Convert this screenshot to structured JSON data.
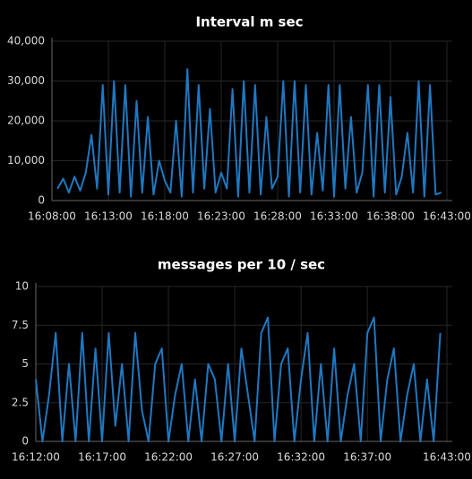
{
  "chart_data": [
    {
      "type": "line",
      "title": "Interval m sec",
      "x": [
        "16:08:30",
        "16:09:00",
        "16:09:30",
        "16:10:00",
        "16:10:30",
        "16:11:00",
        "16:11:30",
        "16:12:00",
        "16:12:30",
        "16:13:00",
        "16:13:30",
        "16:14:00",
        "16:14:30",
        "16:15:00",
        "16:15:30",
        "16:16:00",
        "16:16:30",
        "16:17:00",
        "16:17:30",
        "16:18:00",
        "16:18:30",
        "16:19:00",
        "16:19:30",
        "16:20:00",
        "16:20:30",
        "16:21:00",
        "16:21:30",
        "16:22:00",
        "16:22:30",
        "16:23:00",
        "16:23:30",
        "16:24:00",
        "16:24:30",
        "16:25:00",
        "16:25:30",
        "16:26:00",
        "16:26:30",
        "16:27:00",
        "16:27:30",
        "16:28:00",
        "16:28:30",
        "16:29:00",
        "16:29:30",
        "16:30:00",
        "16:30:30",
        "16:31:00",
        "16:31:30",
        "16:32:00",
        "16:32:30",
        "16:33:00",
        "16:33:30",
        "16:34:00",
        "16:34:30",
        "16:35:00",
        "16:35:30",
        "16:36:00",
        "16:36:30",
        "16:37:00",
        "16:37:30",
        "16:38:00",
        "16:38:30",
        "16:39:00",
        "16:39:30",
        "16:40:00",
        "16:40:30",
        "16:41:00",
        "16:41:30",
        "16:42:00",
        "16:42:30"
      ],
      "series": [
        {
          "color": "#1f78c1",
          "values": [
            3000,
            5500,
            2000,
            6000,
            2500,
            7000,
            16500,
            3000,
            29000,
            1500,
            30000,
            2000,
            29000,
            1000,
            25000,
            2000,
            21000,
            1500,
            10000,
            5000,
            2000,
            20000,
            1000,
            33000,
            2000,
            29000,
            3000,
            23000,
            2000,
            7000,
            3000,
            28000,
            1000,
            30000,
            2000,
            29000,
            1500,
            21000,
            3000,
            6000,
            30000,
            1000,
            30000,
            2000,
            29000,
            1500,
            17000,
            2500,
            29000,
            1000,
            29000,
            3000,
            21000,
            2000,
            7000,
            29000,
            1000,
            29000,
            2000,
            26000,
            1500,
            6000,
            17000,
            2000,
            30000,
            1000,
            29000,
            1500,
            2000
          ]
        }
      ],
      "xlim": [
        "16:08:00",
        "16:43:00"
      ],
      "xticks": [
        "16:08:00",
        "16:13:00",
        "16:18:00",
        "16:23:00",
        "16:28:00",
        "16:33:00",
        "16:38:00",
        "16:43:00"
      ],
      "ylim": [
        0,
        40000
      ],
      "yticks": [
        0,
        {
          "value": 10000,
          "label": "10,000"
        },
        {
          "value": 20000,
          "label": "20,000"
        },
        {
          "value": 30000,
          "label": "30,000"
        },
        {
          "value": 40000,
          "label": "40,000"
        }
      ],
      "grid": true
    },
    {
      "type": "line",
      "title": "messages per 10 / sec",
      "x": [
        "16:12:00",
        "16:12:30",
        "16:13:00",
        "16:13:30",
        "16:14:00",
        "16:14:30",
        "16:15:00",
        "16:15:30",
        "16:16:00",
        "16:16:30",
        "16:17:00",
        "16:17:30",
        "16:18:00",
        "16:18:30",
        "16:19:00",
        "16:19:30",
        "16:20:00",
        "16:20:30",
        "16:21:00",
        "16:21:30",
        "16:22:00",
        "16:22:30",
        "16:23:00",
        "16:23:30",
        "16:24:00",
        "16:24:30",
        "16:25:00",
        "16:25:30",
        "16:26:00",
        "16:26:30",
        "16:27:00",
        "16:27:30",
        "16:28:00",
        "16:28:30",
        "16:29:00",
        "16:29:30",
        "16:30:00",
        "16:30:30",
        "16:31:00",
        "16:31:30",
        "16:32:00",
        "16:32:30",
        "16:33:00",
        "16:33:30",
        "16:34:00",
        "16:34:30",
        "16:35:00",
        "16:35:30",
        "16:36:00",
        "16:36:30",
        "16:37:00",
        "16:37:30",
        "16:38:00",
        "16:38:30",
        "16:39:00",
        "16:39:30",
        "16:40:00",
        "16:40:30",
        "16:41:00",
        "16:41:30",
        "16:42:00",
        "16:42:30"
      ],
      "series": [
        {
          "color": "#1f78c1",
          "values": [
            4,
            0,
            3,
            7,
            0,
            5,
            0,
            7,
            0,
            6,
            0,
            7,
            1,
            5,
            0,
            7,
            2,
            0,
            5,
            6,
            0,
            3,
            5,
            0,
            4,
            0,
            5,
            4,
            0,
            5,
            0,
            6,
            3,
            0,
            7,
            8,
            0,
            5,
            6,
            0,
            4,
            7,
            0,
            5,
            0,
            6,
            0,
            3,
            5,
            0,
            7,
            8,
            0,
            4,
            6,
            0,
            3,
            5,
            0,
            4,
            0,
            7
          ]
        }
      ],
      "xlim": [
        "16:12:00",
        "16:43:00"
      ],
      "xticks": [
        "16:12:00",
        "16:17:00",
        "16:22:00",
        "16:27:00",
        "16:32:00",
        "16:37:00",
        "16:43:00"
      ],
      "ylim": [
        0,
        10
      ],
      "yticks": [
        0,
        2.5,
        5,
        7.5,
        10
      ],
      "grid": true
    }
  ]
}
